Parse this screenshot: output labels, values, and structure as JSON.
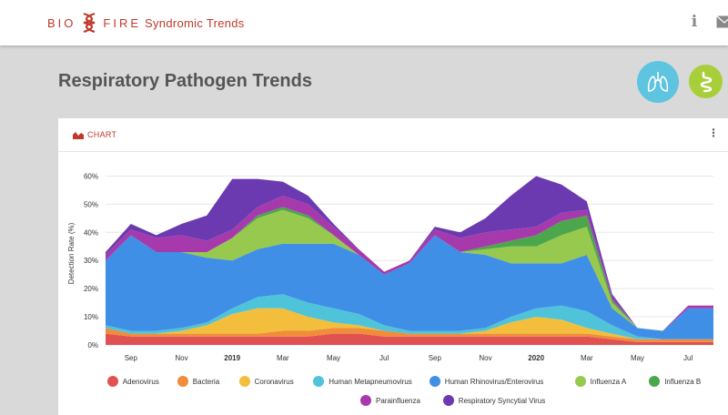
{
  "header": {
    "brand_left": "BIO",
    "brand_right": "FIRE",
    "brand_sub": "Syndromic Trends",
    "info_icon": "info-icon",
    "mail_icon": "mail-icon"
  },
  "page": {
    "title": "Respiratory Pathogen Trends",
    "panel_buttons": [
      {
        "name": "lungs-icon",
        "color": "#5ec4e0"
      },
      {
        "name": "intestine-icon",
        "color": "#a8cf3a"
      }
    ]
  },
  "card": {
    "label": "CHART",
    "menu_glyph": "⋮"
  },
  "chart_data": {
    "type": "area",
    "stacked": true,
    "title": "",
    "xlabel": "",
    "ylabel": "Detection Rate (%)",
    "ylim": [
      0,
      65
    ],
    "yticks": [
      "0%",
      "10%",
      "20%",
      "30%",
      "40%",
      "50%",
      "60%"
    ],
    "grid": true,
    "legend_position": "bottom",
    "x": [
      "2018-08",
      "2018-09",
      "2018-10",
      "2018-11",
      "2018-12",
      "2019-01",
      "2019-02",
      "2019-03",
      "2019-04",
      "2019-05",
      "2019-06",
      "2019-07",
      "2019-08",
      "2019-09",
      "2019-10",
      "2019-11",
      "2019-12",
      "2020-01",
      "2020-02",
      "2020-03",
      "2020-04",
      "2020-05",
      "2020-06",
      "2020-07",
      "2020-08"
    ],
    "xticks": [
      {
        "label": "Sep",
        "bold": false,
        "at": 1
      },
      {
        "label": "Nov",
        "bold": false,
        "at": 3
      },
      {
        "label": "2019",
        "bold": true,
        "at": 5
      },
      {
        "label": "Mar",
        "bold": false,
        "at": 7
      },
      {
        "label": "May",
        "bold": false,
        "at": 9
      },
      {
        "label": "Jul",
        "bold": false,
        "at": 11
      },
      {
        "label": "Sep",
        "bold": false,
        "at": 13
      },
      {
        "label": "Nov",
        "bold": false,
        "at": 15
      },
      {
        "label": "2020",
        "bold": true,
        "at": 17
      },
      {
        "label": "Mar",
        "bold": false,
        "at": 19
      },
      {
        "label": "May",
        "bold": false,
        "at": 21
      },
      {
        "label": "Jul",
        "bold": false,
        "at": 23
      }
    ],
    "series": [
      {
        "name": "Adenovirus",
        "color": "#e05252",
        "values": [
          4,
          3,
          3,
          3,
          3,
          3,
          3,
          3,
          3,
          4,
          4,
          3,
          3,
          3,
          3,
          3,
          3,
          3,
          3,
          3,
          2,
          1,
          1,
          1,
          1
        ]
      },
      {
        "name": "Bacteria",
        "color": "#f08c3a",
        "values": [
          2,
          1,
          1,
          1,
          1,
          1,
          1,
          2,
          2,
          2,
          2,
          2,
          1,
          1,
          1,
          1,
          1,
          1,
          1,
          1,
          1,
          1,
          1,
          1,
          1
        ]
      },
      {
        "name": "Coronavirus",
        "color": "#f2be3c",
        "values": [
          0,
          0,
          0,
          1,
          3,
          7,
          9,
          8,
          5,
          2,
          1,
          0,
          0,
          0,
          0,
          1,
          4,
          6,
          5,
          2,
          1,
          0,
          0,
          0,
          0
        ]
      },
      {
        "name": "Human Metapneumovirus",
        "color": "#4fc3d9",
        "values": [
          1,
          1,
          1,
          1,
          1,
          2,
          4,
          5,
          5,
          5,
          4,
          2,
          1,
          1,
          1,
          1,
          2,
          3,
          5,
          6,
          3,
          1,
          0,
          0,
          0
        ]
      },
      {
        "name": "Human Rhinovirus/Enterovirus",
        "color": "#3f8fe6",
        "values": [
          23,
          34,
          28,
          27,
          23,
          17,
          17,
          18,
          21,
          23,
          21,
          18,
          24,
          34,
          28,
          26,
          19,
          16,
          15,
          20,
          6,
          3,
          3,
          11,
          11
        ]
      },
      {
        "name": "Influenza A",
        "color": "#96c94e",
        "values": [
          0,
          0,
          0,
          0,
          2,
          8,
          11,
          12,
          9,
          3,
          0,
          0,
          0,
          0,
          0,
          2,
          6,
          6,
          10,
          10,
          2,
          0,
          0,
          0,
          0
        ]
      },
      {
        "name": "Influenza B",
        "color": "#4ca64c",
        "values": [
          0,
          0,
          0,
          0,
          0,
          0,
          1,
          1,
          1,
          0,
          0,
          0,
          0,
          0,
          0,
          1,
          2,
          4,
          5,
          4,
          1,
          0,
          0,
          0,
          0
        ]
      },
      {
        "name": "Parainfluenza",
        "color": "#a63aad",
        "values": [
          2,
          2,
          5,
          6,
          4,
          3,
          3,
          4,
          4,
          3,
          2,
          1,
          1,
          2,
          5,
          5,
          4,
          3,
          3,
          2,
          1,
          0,
          0,
          1,
          1
        ]
      },
      {
        "name": "Respiratory Syncytial Virus",
        "color": "#6b3ab0",
        "values": [
          1,
          2,
          1,
          4,
          9,
          18,
          10,
          5,
          3,
          1,
          0,
          0,
          0,
          1,
          2,
          5,
          12,
          18,
          10,
          3,
          1,
          0,
          0,
          0,
          0
        ]
      }
    ]
  }
}
